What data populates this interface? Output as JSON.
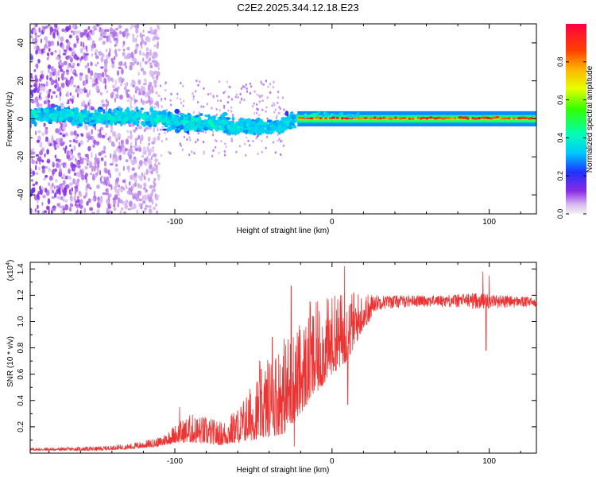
{
  "title": "C2E2.2025.344.12.18.E23",
  "chart_data": [
    {
      "type": "heatmap",
      "title": "C2E2.2025.344.12.18.E23",
      "xlabel": "Height of straight line (km)",
      "ylabel": "Frequency (Hz)",
      "xlim": [
        -192,
        130
      ],
      "ylim": [
        -50,
        50
      ],
      "x_ticks": [
        -100,
        0,
        100
      ],
      "x_tick_labels": [
        "-100",
        "0",
        "100"
      ],
      "y_ticks": [
        -40,
        -20,
        0,
        20,
        40
      ],
      "y_tick_labels": [
        "-40",
        "-20",
        "0",
        "20",
        "40"
      ],
      "dominant_frequency": {
        "x": [
          -190,
          -170,
          -150,
          -130,
          -110,
          -90,
          -70,
          -50,
          -35,
          -25,
          -15,
          0,
          20,
          60,
          100,
          130
        ],
        "y": [
          2,
          2,
          1,
          1,
          0,
          -2,
          -3,
          -4,
          -4,
          -1,
          1,
          1,
          0,
          0,
          0,
          0
        ]
      },
      "colorbar": {
        "label": "Normalized spectral amplitude",
        "range": [
          0,
          1
        ],
        "ticks": [
          "0.0",
          "0.2",
          "0.4",
          "0.6",
          "0.8"
        ],
        "tick_values": [
          0.0,
          0.2,
          0.4,
          0.6,
          0.8
        ]
      }
    },
    {
      "type": "line",
      "xlabel": "Height of straight line (km)",
      "ylabel": "SNR (10 * v/v)",
      "yscale_label_base": "(x10",
      "yscale_label_exp": "4",
      "yscale_label_close": ")",
      "xlim": [
        -192,
        130
      ],
      "ylim": [
        0,
        1.45
      ],
      "x_ticks": [
        -100,
        0,
        100
      ],
      "x_tick_labels": [
        "-100",
        "0",
        "100"
      ],
      "y_ticks": [
        0.2,
        0.4,
        0.6,
        0.8,
        1.0,
        1.2,
        1.4
      ],
      "y_tick_labels": [
        "0.2",
        "0.4",
        "0.6",
        "0.8",
        "1.0",
        "1.2",
        "1.4"
      ],
      "series": [
        {
          "name": "SNR",
          "color": "#ee3333",
          "envelope_x": [
            -192,
            -150,
            -130,
            -110,
            -100,
            -90,
            -80,
            -70,
            -60,
            -50,
            -40,
            -30,
            -20,
            -10,
            0,
            10,
            20,
            30,
            50,
            70,
            90,
            110,
            130
          ],
          "envelope_low": [
            0.02,
            0.02,
            0.03,
            0.05,
            0.08,
            0.08,
            0.07,
            0.06,
            0.08,
            0.1,
            0.12,
            0.15,
            0.3,
            0.45,
            0.6,
            0.7,
            0.95,
            1.05,
            1.08,
            1.08,
            1.05,
            1.07,
            1.08
          ],
          "envelope_high": [
            0.04,
            0.05,
            0.07,
            0.12,
            0.22,
            0.3,
            0.28,
            0.24,
            0.35,
            0.55,
            0.75,
            0.9,
            1.0,
            1.15,
            1.2,
            1.25,
            1.22,
            1.2,
            1.2,
            1.2,
            1.22,
            1.2,
            1.18
          ],
          "spikes": [
            {
              "x": -97,
              "y": 0.35
            },
            {
              "x": -46,
              "y": 0.7
            },
            {
              "x": -38,
              "y": 0.88
            },
            {
              "x": -26,
              "y": 1.27
            },
            {
              "x": -24,
              "y": 0.05
            },
            {
              "x": -14,
              "y": 1.15
            },
            {
              "x": 8,
              "y": 1.42
            },
            {
              "x": 10,
              "y": 0.37
            },
            {
              "x": 96,
              "y": 1.38
            },
            {
              "x": 98,
              "y": 0.78
            },
            {
              "x": 100,
              "y": 1.35
            }
          ]
        }
      ]
    }
  ]
}
